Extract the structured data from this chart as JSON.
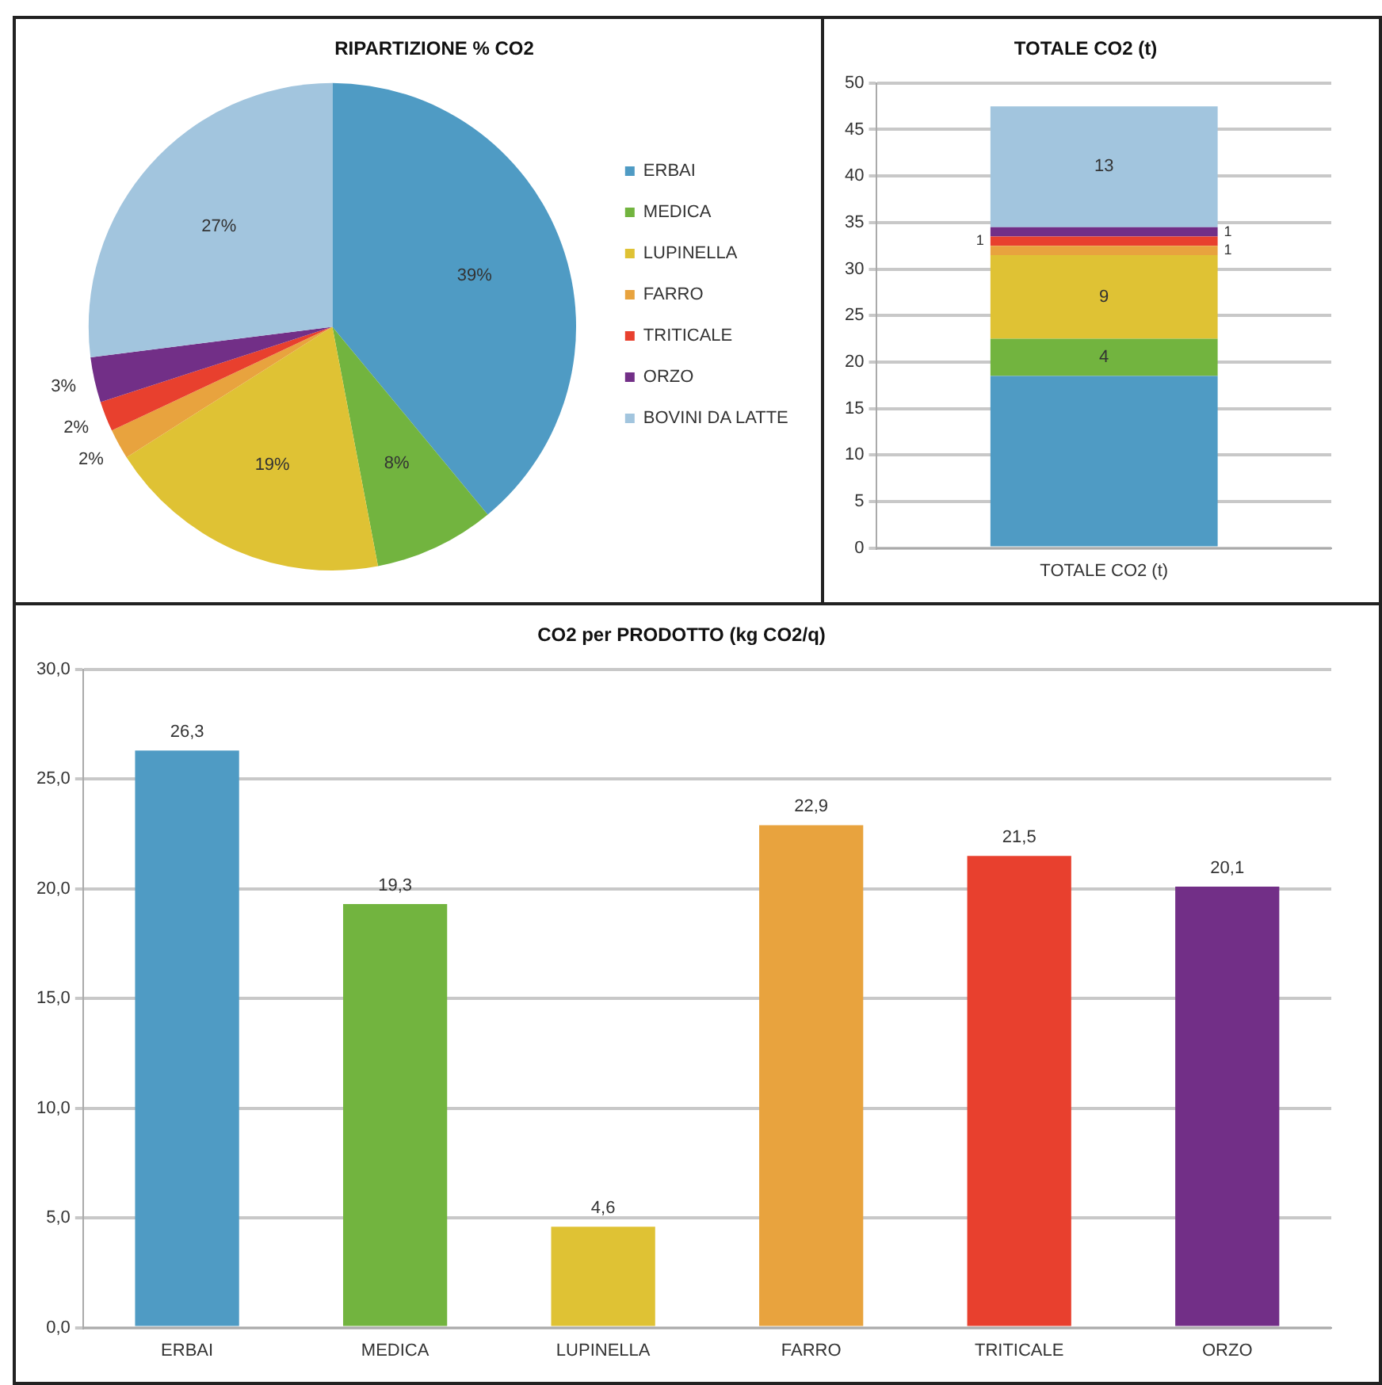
{
  "chart_data": [
    {
      "type": "pie",
      "title": "RIPARTIZIONE % CO2",
      "categories": [
        "ERBAI",
        "MEDICA",
        "LUPINELLA",
        "FARRO",
        "TRITICALE",
        "ORZO",
        "BOVINI DA LATTE"
      ],
      "values": [
        39,
        8,
        19,
        2,
        2,
        3,
        27
      ],
      "colors": [
        "#4f9bc4",
        "#72b43f",
        "#dfc234",
        "#e8a33e",
        "#e8402e",
        "#722f87",
        "#a2c5de"
      ],
      "value_labels": [
        "39%",
        "8%",
        "19%",
        "2%",
        "2%",
        "3%",
        "27%"
      ],
      "legend": "right"
    },
    {
      "type": "bar",
      "stacked": true,
      "title": "TOTALE CO2 (t)",
      "categories": [
        "TOTALE CO2 (t)"
      ],
      "ylim": [
        0,
        50
      ],
      "yticks": [
        0,
        5,
        10,
        15,
        20,
        25,
        30,
        35,
        40,
        45,
        50
      ],
      "grid": "y",
      "series": [
        {
          "color": "#4f9bc4",
          "values": [
            18.5
          ],
          "value_labels": [
            null
          ]
        },
        {
          "color": "#72b43f",
          "values": [
            4
          ],
          "value_labels": [
            "4"
          ]
        },
        {
          "color": "#dfc234",
          "values": [
            9
          ],
          "value_labels": [
            "9"
          ]
        },
        {
          "color": "#e8a33e",
          "values": [
            1
          ],
          "value_labels": [
            "1"
          ]
        },
        {
          "color": "#e8402e",
          "values": [
            1
          ],
          "value_labels": [
            "1"
          ]
        },
        {
          "color": "#722f87",
          "values": [
            1
          ],
          "value_labels": [
            "1"
          ]
        },
        {
          "color": "#a2c5de",
          "values": [
            13
          ],
          "value_labels": [
            "13"
          ]
        }
      ]
    },
    {
      "type": "bar",
      "title": "CO2 per PRODOTTO (kg CO2/q)",
      "categories": [
        "ERBAI",
        "MEDICA",
        "LUPINELLA",
        "FARRO",
        "TRITICALE",
        "ORZO"
      ],
      "values": [
        26.3,
        19.3,
        4.6,
        22.9,
        21.5,
        20.1
      ],
      "colors": [
        "#4f9bc4",
        "#72b43f",
        "#dfc234",
        "#e8a33e",
        "#e8402e",
        "#722f87"
      ],
      "value_labels": [
        "26,3",
        "19,3",
        "4,6",
        "22,9",
        "21,5",
        "20,1"
      ],
      "ylim": [
        0,
        30
      ],
      "yticks": [
        {
          "value": 0,
          "label": "0,0"
        },
        {
          "value": 5,
          "label": "5,0"
        },
        {
          "value": 10,
          "label": "10,0"
        },
        {
          "value": 15,
          "label": "15,0"
        },
        {
          "value": 20,
          "label": "20,0"
        },
        {
          "value": 25,
          "label": "25,0"
        },
        {
          "value": 30,
          "label": "30,0"
        }
      ],
      "grid": "y"
    }
  ]
}
